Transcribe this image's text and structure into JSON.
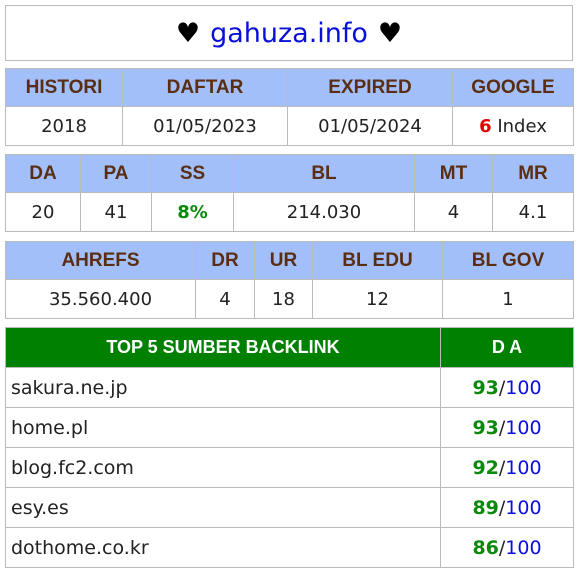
{
  "header": {
    "heart_left": "♥",
    "site": "gahuza.info",
    "heart_right": "♥"
  },
  "table1": {
    "headers": [
      "HISTORI",
      "DAFTAR",
      "EXPIRED",
      "GOOGLE"
    ],
    "values": [
      "2018",
      "01/05/2023",
      "01/05/2024"
    ],
    "google_count": "6",
    "google_label": "Index"
  },
  "table2": {
    "headers": [
      "DA",
      "PA",
      "SS",
      "BL",
      "MT",
      "MR"
    ],
    "values": [
      "20",
      "41",
      "8%",
      "214.030",
      "4",
      "4.1"
    ]
  },
  "table3": {
    "headers": [
      "AHREFS",
      "DR",
      "UR",
      "BL EDU",
      "BL GOV"
    ],
    "values": [
      "35.560.400",
      "4",
      "18",
      "12",
      "1"
    ]
  },
  "backlinks": {
    "header_source": "TOP 5 SUMBER BACKLINK",
    "header_da": "D A",
    "max": "100",
    "sep": "/",
    "rows": [
      {
        "domain": "sakura.ne.jp",
        "score": "93"
      },
      {
        "domain": "home.pl",
        "score": "93"
      },
      {
        "domain": "blog.fc2.com",
        "score": "92"
      },
      {
        "domain": "esy.es",
        "score": "89"
      },
      {
        "domain": "dothome.co.kr",
        "score": "86"
      }
    ]
  },
  "colors": {
    "header_bg": "#a3bffa",
    "header_text": "#5a2e12",
    "green": "#008000",
    "link_blue": "#0b10d8",
    "red": "#e60000"
  }
}
